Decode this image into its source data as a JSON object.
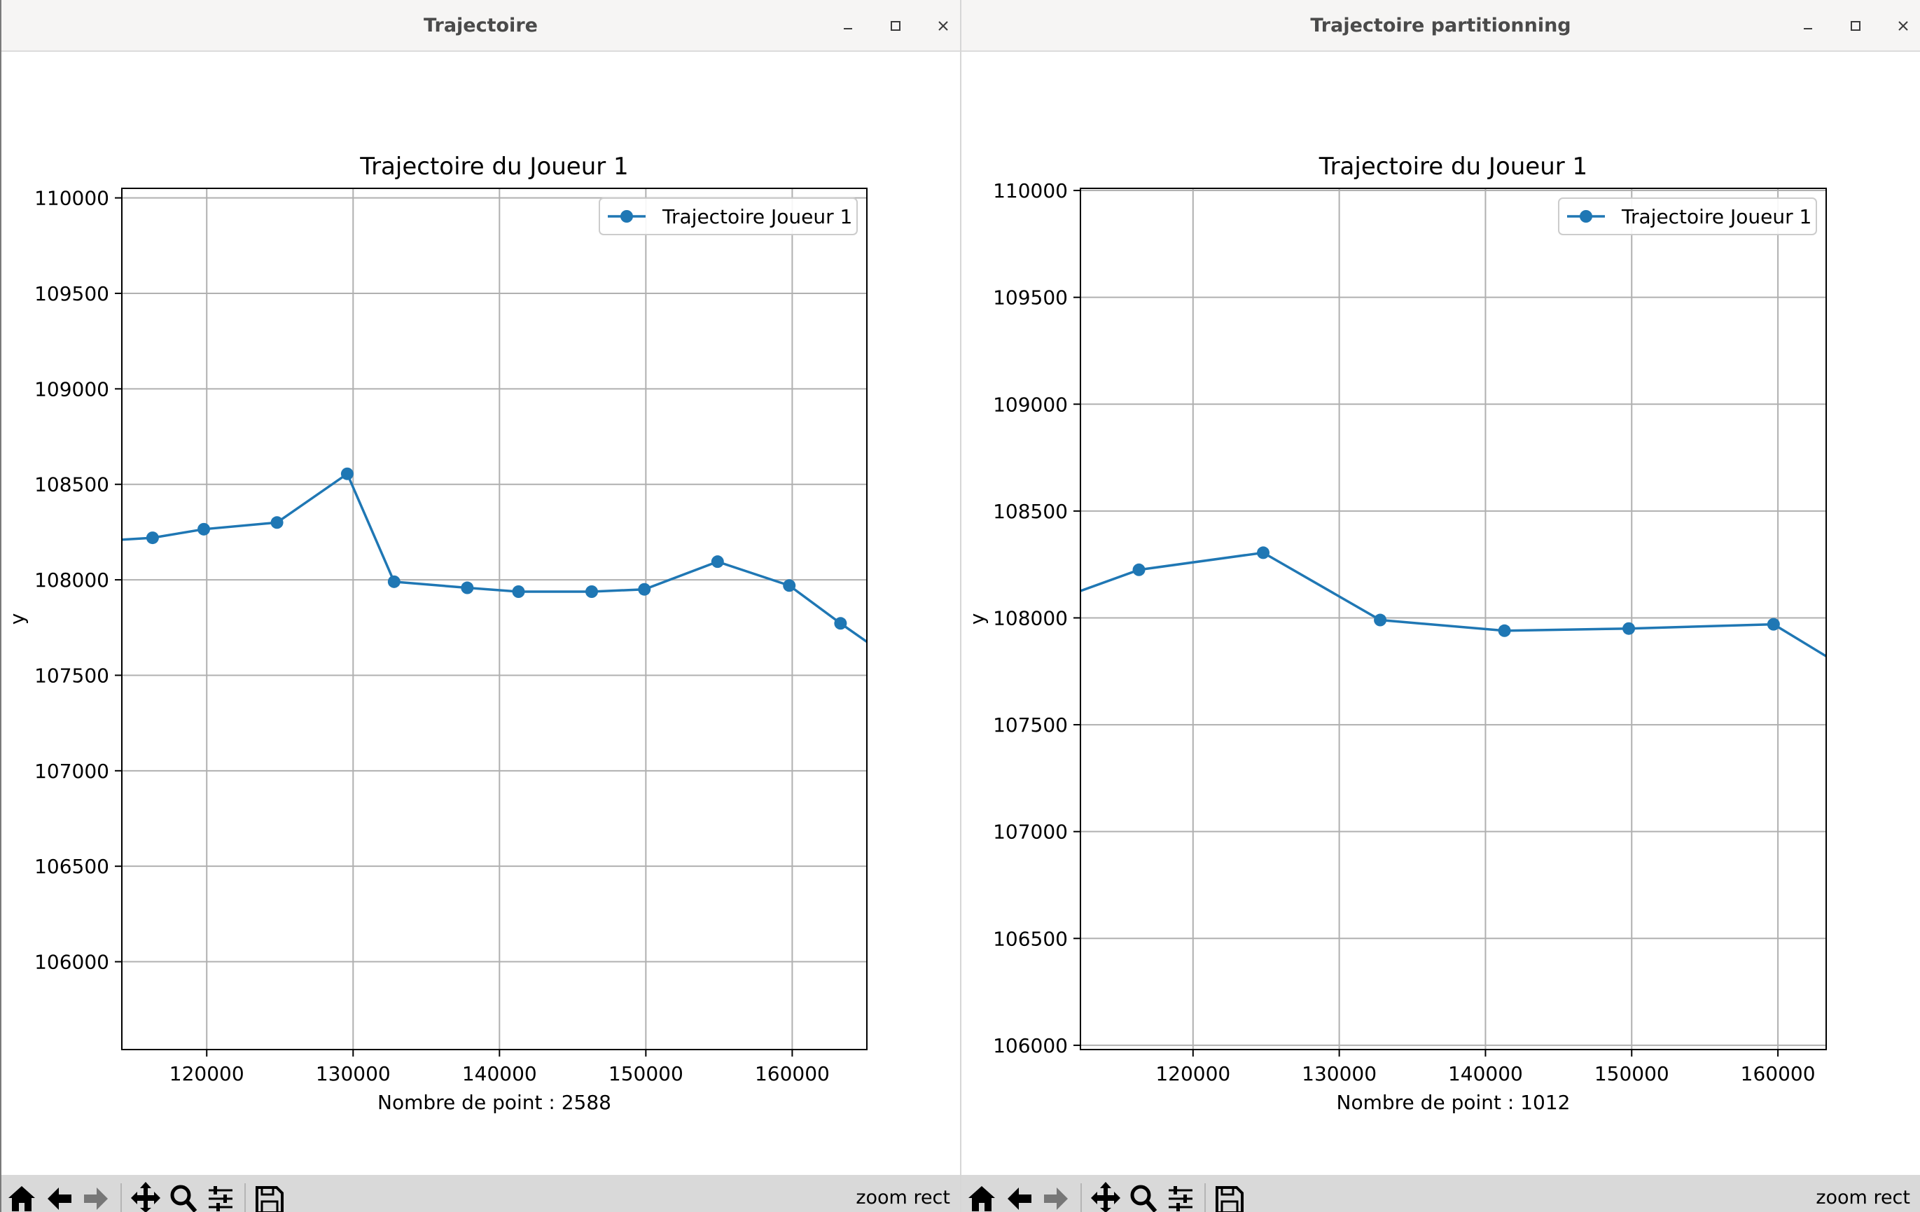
{
  "windows": [
    {
      "title": "Trajectoire",
      "toolbar": {
        "mode": "zoom rect"
      },
      "chart_data": {
        "type": "line",
        "title": "Trajectoire du Joueur 1",
        "xlabel": "Nombre de point : 2588",
        "ylabel": "y",
        "xlim": [
          114200,
          165100
        ],
        "ylim": [
          105540,
          110050
        ],
        "xticks": [
          120000,
          130000,
          140000,
          150000,
          160000
        ],
        "yticks": [
          106000,
          106500,
          107000,
          107500,
          108000,
          108500,
          109000,
          109500,
          110000
        ],
        "grid": true,
        "legend": "top-right",
        "series": [
          {
            "name": "Trajectoire Joueur 1",
            "color": "#1f77b4",
            "marker": "circle",
            "x": [
              112000,
              116300,
              119800,
              124800,
              129600,
              132800,
              137800,
              141300,
              146300,
              149900,
              154900,
              159800,
              163300,
              166500
            ],
            "y": [
              108200,
              108220,
              108265,
              108300,
              108555,
              107990,
              107958,
              107938,
              107938,
              107950,
              108095,
              107970,
              107772,
              107600
            ],
            "markers": [
              false,
              true,
              true,
              true,
              true,
              true,
              true,
              true,
              true,
              true,
              true,
              true,
              true,
              false
            ]
          }
        ]
      }
    },
    {
      "title": "Trajectoire partitionning",
      "toolbar": {
        "mode": "zoom rect"
      },
      "chart_data": {
        "type": "line",
        "title": "Trajectoire du Joueur 1",
        "xlabel": "Nombre de point : 1012",
        "ylabel": "y",
        "xlim": [
          112300,
          163300
        ],
        "ylim": [
          105980,
          110010
        ],
        "xticks": [
          120000,
          130000,
          140000,
          150000,
          160000
        ],
        "yticks": [
          106000,
          106500,
          107000,
          107500,
          108000,
          108500,
          109000,
          109500,
          110000
        ],
        "grid": true,
        "legend": "top-right",
        "series": [
          {
            "name": "Trajectoire Joueur 1",
            "color": "#1f77b4",
            "marker": "circle",
            "x": [
              108000,
              116300,
              124800,
              132800,
              141300,
              149800,
              159700,
              165000
            ],
            "y": [
              108020,
              108225,
              108305,
              107990,
              107940,
              107950,
              107970,
              107750
            ],
            "markers": [
              false,
              true,
              true,
              true,
              true,
              true,
              true,
              false
            ]
          }
        ]
      }
    }
  ],
  "icons": {
    "titlebar": [
      "minimize-icon",
      "maximize-icon",
      "close-icon"
    ],
    "toolbar": [
      "home-icon",
      "back-arrow-icon",
      "forward-arrow-icon",
      "pan-icon",
      "zoom-icon",
      "subplots-icon",
      "save-icon"
    ]
  }
}
